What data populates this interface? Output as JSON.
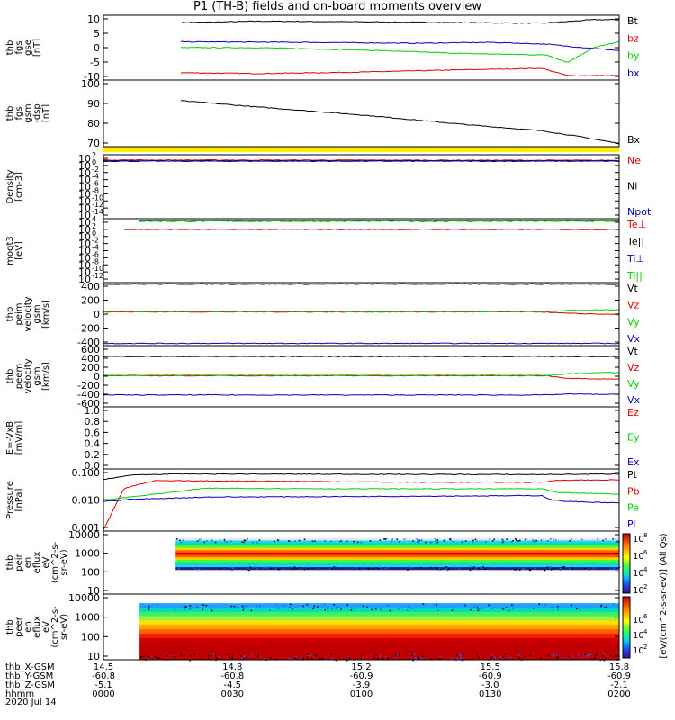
{
  "title": "P1  (TH-B) fields and on-board moments overview",
  "footer": {
    "rows": [
      {
        "label": "thb_X-GSM",
        "values": [
          "14.5",
          "14.8",
          "15.2",
          "15.5",
          "15.8"
        ]
      },
      {
        "label": "thb_Y-GSM",
        "values": [
          "-60.8",
          "-60.8",
          "-60.9",
          "-60.9",
          "-60.9"
        ]
      },
      {
        "label": "thb_Z-GSM",
        "values": [
          "-5.1",
          "-4.5",
          "-3.9",
          "-3.0",
          "-2.1"
        ]
      },
      {
        "label": "hhmm",
        "values": [
          "0000",
          "0030",
          "0100",
          "0130",
          "0200"
        ]
      }
    ],
    "date": "2020 Jul 14"
  },
  "colorbar": {
    "label": "[eV/(cm^2-s-sr-eV)] (All Qs)",
    "ticks_upper": [
      "10^8",
      "10^6",
      "10^4",
      "10^2"
    ],
    "ticks_lower": [
      "10^6",
      "10^4",
      "10^2"
    ]
  },
  "colors": {
    "black": "#000000",
    "red": "#e00000",
    "green": "#00d000",
    "blue": "#0000c0",
    "yellow": "#ffee00"
  },
  "chart_data": [
    {
      "type": "line",
      "ylabel": "thb\nfgs\ngse\n[nT]",
      "yticks": [
        "10",
        "5",
        "0",
        "-5",
        "-10"
      ],
      "ylim": [
        -11,
        11
      ],
      "legend": [
        {
          "name": "Bt",
          "color": "black"
        },
        {
          "name": "bz",
          "color": "red"
        },
        {
          "name": "by",
          "color": "green"
        },
        {
          "name": "bx",
          "color": "blue"
        }
      ],
      "series": [
        {
          "name": "Bt",
          "color": "black",
          "x": [
            0.15,
            0.3,
            0.5,
            0.7,
            0.85,
            0.95,
            1.0
          ],
          "y": [
            8.5,
            9,
            8.8,
            8.5,
            8.3,
            9.5,
            9.5
          ]
        },
        {
          "name": "bz",
          "color": "red",
          "x": [
            0.15,
            0.3,
            0.5,
            0.7,
            0.85,
            0.9,
            1.0
          ],
          "y": [
            -8.5,
            -8.8,
            -8.3,
            -7.5,
            -7,
            -9.5,
            -9.5
          ]
        },
        {
          "name": "by",
          "color": "green",
          "x": [
            0.15,
            0.3,
            0.5,
            0.7,
            0.86,
            0.9,
            0.95,
            1.0
          ],
          "y": [
            0,
            0,
            -0.8,
            -2,
            -2.5,
            -5,
            0,
            2
          ]
        },
        {
          "name": "bx",
          "color": "blue",
          "x": [
            0.15,
            0.4,
            0.6,
            0.75,
            0.86,
            0.9,
            1.0
          ],
          "y": [
            2,
            1.8,
            1.5,
            1.8,
            1.2,
            0.5,
            -1
          ]
        }
      ]
    },
    {
      "type": "line",
      "ylabel": "thb\nfgs\ngsm\n-dsp\n[nT]",
      "yticks": [
        "100",
        "90",
        "80",
        "70"
      ],
      "ylim": [
        63,
        105
      ],
      "legend": [
        {
          "name": "Bx",
          "color": "black"
        }
      ],
      "series": [
        {
          "name": "Bx",
          "color": "black",
          "x": [
            0.15,
            0.3,
            0.5,
            0.7,
            0.85,
            0.93,
            1.0
          ],
          "y": [
            92,
            88,
            83,
            77,
            73,
            69,
            65
          ]
        }
      ]
    },
    {
      "type": "line",
      "ylabel": "Density\n[cm-3]",
      "yticks": [
        "10^2",
        "10^0",
        "10^-2",
        "10^-4",
        "10^-6",
        "10^-8",
        "10^-10",
        "10^-12",
        "10^-14"
      ],
      "ylim": [
        -14,
        2
      ],
      "log": true,
      "legend": [
        {
          "name": "Ne",
          "color": "red"
        },
        {
          "name": "Ni",
          "color": "black"
        },
        {
          "name": "Npot",
          "color": "blue"
        }
      ],
      "series": [
        {
          "name": "Ne",
          "color": "red",
          "x": [
            0,
            1
          ],
          "y": [
            0.7,
            0.6
          ]
        },
        {
          "name": "Ni",
          "color": "black",
          "x": [
            0,
            1
          ],
          "y": [
            0.4,
            0.4
          ]
        },
        {
          "name": "Npot",
          "color": "blue",
          "x": [
            0,
            1
          ],
          "y": [
            0.5,
            0.5
          ]
        }
      ]
    },
    {
      "type": "line",
      "ylabel": "moqt3\n[eV]",
      "yticks": [
        "10^4",
        "10^2",
        "10^0",
        "10^-2",
        "10^-4",
        "10^-6",
        "10^-8",
        "10^-10",
        "10^-12"
      ],
      "ylim": [
        -12,
        4
      ],
      "log": true,
      "legend": [
        {
          "name": "Te⊥",
          "color": "red"
        },
        {
          "name": "Te||",
          "color": "black"
        },
        {
          "name": "Ti⊥",
          "color": "blue"
        },
        {
          "name": "Ti||",
          "color": "green"
        }
      ],
      "series": [
        {
          "name": "Te||",
          "color": "black",
          "x": [
            0.07,
            1
          ],
          "y": [
            3.4,
            3.4
          ]
        },
        {
          "name": "Ti||",
          "color": "green",
          "x": [
            0.07,
            1
          ],
          "y": [
            3.45,
            3.45
          ]
        },
        {
          "name": "Te⊥",
          "color": "red",
          "x": [
            0.04,
            1
          ],
          "y": [
            1.3,
            1.3
          ]
        }
      ]
    },
    {
      "type": "line",
      "ylabel": "thb\npeim\nvelocity\ngsm\n[km/s]",
      "yticks": [
        "400",
        "200",
        "0",
        "-200",
        "-400"
      ],
      "ylim": [
        -420,
        420
      ],
      "legend": [
        {
          "name": "Vt",
          "color": "black"
        },
        {
          "name": "Vz",
          "color": "red"
        },
        {
          "name": "Vy",
          "color": "green"
        },
        {
          "name": "Vx",
          "color": "blue"
        }
      ],
      "series": [
        {
          "name": "Vt",
          "color": "black",
          "x": [
            0,
            1
          ],
          "y": [
            400,
            400
          ]
        },
        {
          "name": "Vz",
          "color": "red",
          "x": [
            0,
            0.85,
            0.9,
            1
          ],
          "y": [
            30,
            30,
            10,
            -5
          ]
        },
        {
          "name": "Vy",
          "color": "green",
          "x": [
            0,
            0.85,
            0.9,
            1
          ],
          "y": [
            35,
            35,
            50,
            60
          ]
        },
        {
          "name": "Vx",
          "color": "blue",
          "x": [
            0,
            1
          ],
          "y": [
            -390,
            -390
          ]
        }
      ]
    },
    {
      "type": "line",
      "ylabel": "thb\npeem\nvelocity\ngsm\n[km/s]",
      "yticks": [
        "600",
        "400",
        "200",
        "0",
        "-200",
        "-400",
        "-600"
      ],
      "ylim": [
        -620,
        620
      ],
      "legend": [
        {
          "name": "Vt",
          "color": "black"
        },
        {
          "name": "Vz",
          "color": "red"
        },
        {
          "name": "Vy",
          "color": "green"
        },
        {
          "name": "Vx",
          "color": "blue"
        }
      ],
      "series": [
        {
          "name": "Vt",
          "color": "black",
          "x": [
            0,
            1
          ],
          "y": [
            400,
            400
          ]
        },
        {
          "name": "Vz",
          "color": "red",
          "x": [
            0,
            0.86,
            0.9,
            1
          ],
          "y": [
            10,
            10,
            -40,
            -60
          ]
        },
        {
          "name": "Vy",
          "color": "green",
          "x": [
            0,
            0.86,
            0.9,
            1
          ],
          "y": [
            20,
            20,
            50,
            80
          ]
        },
        {
          "name": "Vx",
          "color": "blue",
          "x": [
            0,
            0.86,
            0.9,
            1
          ],
          "y": [
            -380,
            -380,
            -360,
            -370
          ]
        }
      ]
    },
    {
      "type": "line",
      "ylabel": "E=-VxB\n[mV/m]",
      "yticks": [
        "1.0",
        "0.8",
        "0.6",
        "0.4",
        "0.2",
        "0.0"
      ],
      "ylim": [
        -0.02,
        1.02
      ],
      "legend": [
        {
          "name": "Ez",
          "color": "red"
        },
        {
          "name": "Ey",
          "color": "green"
        },
        {
          "name": "Ex",
          "color": "blue"
        }
      ],
      "series": []
    },
    {
      "type": "line",
      "ylabel": "Pressure\n[nPa]",
      "yticks": [
        "0.100",
        "0.010",
        "0.001"
      ],
      "ylim": [
        -3.05,
        -0.95
      ],
      "log": true,
      "legend": [
        {
          "name": "Pt",
          "color": "black"
        },
        {
          "name": "Pb",
          "color": "red"
        },
        {
          "name": "Pe",
          "color": "green"
        },
        {
          "name": "Pi",
          "color": "blue"
        }
      ],
      "series": [
        {
          "name": "Pt",
          "color": "black",
          "x": [
            0,
            0.06,
            0.15,
            0.5,
            0.85,
            1
          ],
          "y": [
            -1.3,
            -1.15,
            -1.12,
            -1.13,
            -1.14,
            -1.12
          ]
        },
        {
          "name": "Pb",
          "color": "red",
          "x": [
            0,
            0.04,
            0.1,
            0.3,
            0.6,
            0.85,
            0.88,
            1
          ],
          "y": [
            -3.0,
            -1.6,
            -1.35,
            -1.36,
            -1.4,
            -1.4,
            -1.33,
            -1.32
          ]
        },
        {
          "name": "Pe",
          "color": "green",
          "x": [
            0,
            0.2,
            0.5,
            0.85,
            0.88,
            1
          ],
          "y": [
            -2.0,
            -1.6,
            -1.62,
            -1.62,
            -1.75,
            -1.8
          ]
        },
        {
          "name": "Pi",
          "color": "blue",
          "x": [
            0,
            0.05,
            0.2,
            0.5,
            0.85,
            0.87,
            0.9,
            1
          ],
          "y": [
            -2.05,
            -1.98,
            -1.9,
            -1.88,
            -1.85,
            -2.0,
            -2.05,
            -2.1
          ]
        }
      ]
    },
    {
      "type": "heatmap",
      "ylabel": "thb\npeir\nen\neflux\neV\n(cm^2-s-\nsr-eV)",
      "yticks": [
        "10000",
        "1000",
        "100",
        "10"
      ],
      "ylim": [
        0.7,
        4.3
      ],
      "log": true,
      "x_range": [
        0.14,
        1.0
      ],
      "y_range": [
        2.1,
        3.9
      ],
      "legend": []
    },
    {
      "type": "heatmap",
      "ylabel": "thb\npeer\nen\neflux\neV\n(cm^2-s-\nsr-eV)",
      "yticks": [
        "10000",
        "1000",
        "100",
        "10"
      ],
      "ylim": [
        0.7,
        4.3
      ],
      "log": true,
      "x_range": [
        0.07,
        1.0
      ],
      "y_range": [
        0.7,
        3.8
      ],
      "legend": []
    }
  ]
}
